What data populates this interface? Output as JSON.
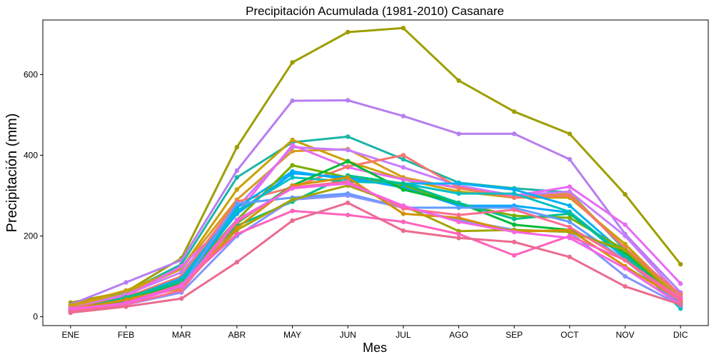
{
  "chart_data": {
    "type": "line",
    "title": "Precipitación Acumulada (1981-2010)  Casanare",
    "xlabel": "Mes",
    "ylabel": "Precipitación  (mm)",
    "categories": [
      "ENE",
      "FEB",
      "MAR",
      "ABR",
      "MAY",
      "JUN",
      "JUL",
      "AGO",
      "SEP",
      "OCT",
      "NOV",
      "DIC"
    ],
    "yticks": [
      0,
      200,
      400,
      600
    ],
    "ylim": [
      -22,
      735
    ],
    "grid": false,
    "legend": "none",
    "series": [
      {
        "color": "#9E9E00",
        "values": [
          35,
          62,
          145,
          420,
          630,
          705,
          715,
          585,
          508,
          453,
          303,
          130
        ]
      },
      {
        "color": "#B77EF0",
        "values": [
          30,
          85,
          140,
          362,
          535,
          536,
          497,
          453,
          453,
          390,
          205,
          60
        ]
      },
      {
        "color": "#1BB5A7",
        "values": [
          22,
          60,
          130,
          345,
          432,
          446,
          390,
          332,
          318,
          308,
          165,
          40
        ]
      },
      {
        "color": "#C9A100",
        "values": [
          28,
          65,
          120,
          315,
          438,
          385,
          340,
          310,
          295,
          295,
          180,
          45
        ]
      },
      {
        "color": "#D89A20",
        "values": [
          25,
          58,
          118,
          290,
          410,
          415,
          345,
          318,
          295,
          305,
          170,
          45
        ]
      },
      {
        "color": "#C77CFF",
        "values": [
          20,
          55,
          110,
          270,
          420,
          413,
          370,
          325,
          300,
          310,
          200,
          50
        ]
      },
      {
        "color": "#E76BF3",
        "values": [
          18,
          50,
          125,
          255,
          425,
          370,
          340,
          320,
          300,
          322,
          228,
          82
        ]
      },
      {
        "color": "#F8766D",
        "values": [
          20,
          48,
          100,
          285,
          320,
          372,
          400,
          320,
          295,
          300,
          170,
          55
        ]
      },
      {
        "color": "#00B0F6",
        "values": [
          15,
          45,
          95,
          270,
          360,
          340,
          330,
          330,
          315,
          275,
          155,
          30
        ]
      },
      {
        "color": "#7CAE00",
        "values": [
          12,
          42,
          90,
          240,
          375,
          345,
          325,
          280,
          250,
          245,
          165,
          35
        ]
      },
      {
        "color": "#00A9FF",
        "values": [
          10,
          40,
          85,
          255,
          355,
          345,
          320,
          275,
          275,
          258,
          145,
          25
        ]
      },
      {
        "color": "#00BFC4",
        "values": [
          12,
          38,
          90,
          262,
          345,
          335,
          330,
          305,
          305,
          260,
          150,
          20
        ]
      },
      {
        "color": "#00BA38",
        "values": [
          14,
          40,
          82,
          232,
          325,
          385,
          315,
          282,
          228,
          215,
          160,
          38
        ]
      },
      {
        "color": "#00C08B",
        "values": [
          15,
          48,
          88,
          225,
          285,
          350,
          330,
          282,
          242,
          255,
          150,
          35
        ]
      },
      {
        "color": "#619CFF",
        "values": [
          12,
          35,
          75,
          280,
          295,
          305,
          270,
          270,
          270,
          235,
          140,
          30
        ]
      },
      {
        "color": "#8494FF",
        "values": [
          10,
          30,
          60,
          200,
          290,
          300,
          270,
          240,
          215,
          210,
          100,
          28
        ]
      },
      {
        "color": "#A3A500",
        "values": [
          16,
          42,
          75,
          215,
          290,
          325,
          275,
          212,
          215,
          210,
          165,
          40
        ]
      },
      {
        "color": "#D39200",
        "values": [
          18,
          42,
          70,
          220,
          325,
          345,
          255,
          245,
          210,
          215,
          125,
          40
        ]
      },
      {
        "color": "#FF62BC",
        "values": [
          15,
          35,
          80,
          205,
          262,
          252,
          235,
          205,
          152,
          200,
          140,
          45
        ]
      },
      {
        "color": "#FF6C91",
        "values": [
          12,
          30,
          65,
          235,
          320,
          335,
          268,
          252,
          265,
          222,
          140,
          38
        ]
      },
      {
        "color": "#F564E3",
        "values": [
          20,
          32,
          75,
          240,
          318,
          330,
          275,
          235,
          210,
          195,
          120,
          30
        ]
      },
      {
        "color": "#EA6C8F",
        "values": [
          10,
          25,
          45,
          135,
          238,
          282,
          213,
          195,
          185,
          148,
          75,
          30
        ]
      }
    ]
  }
}
